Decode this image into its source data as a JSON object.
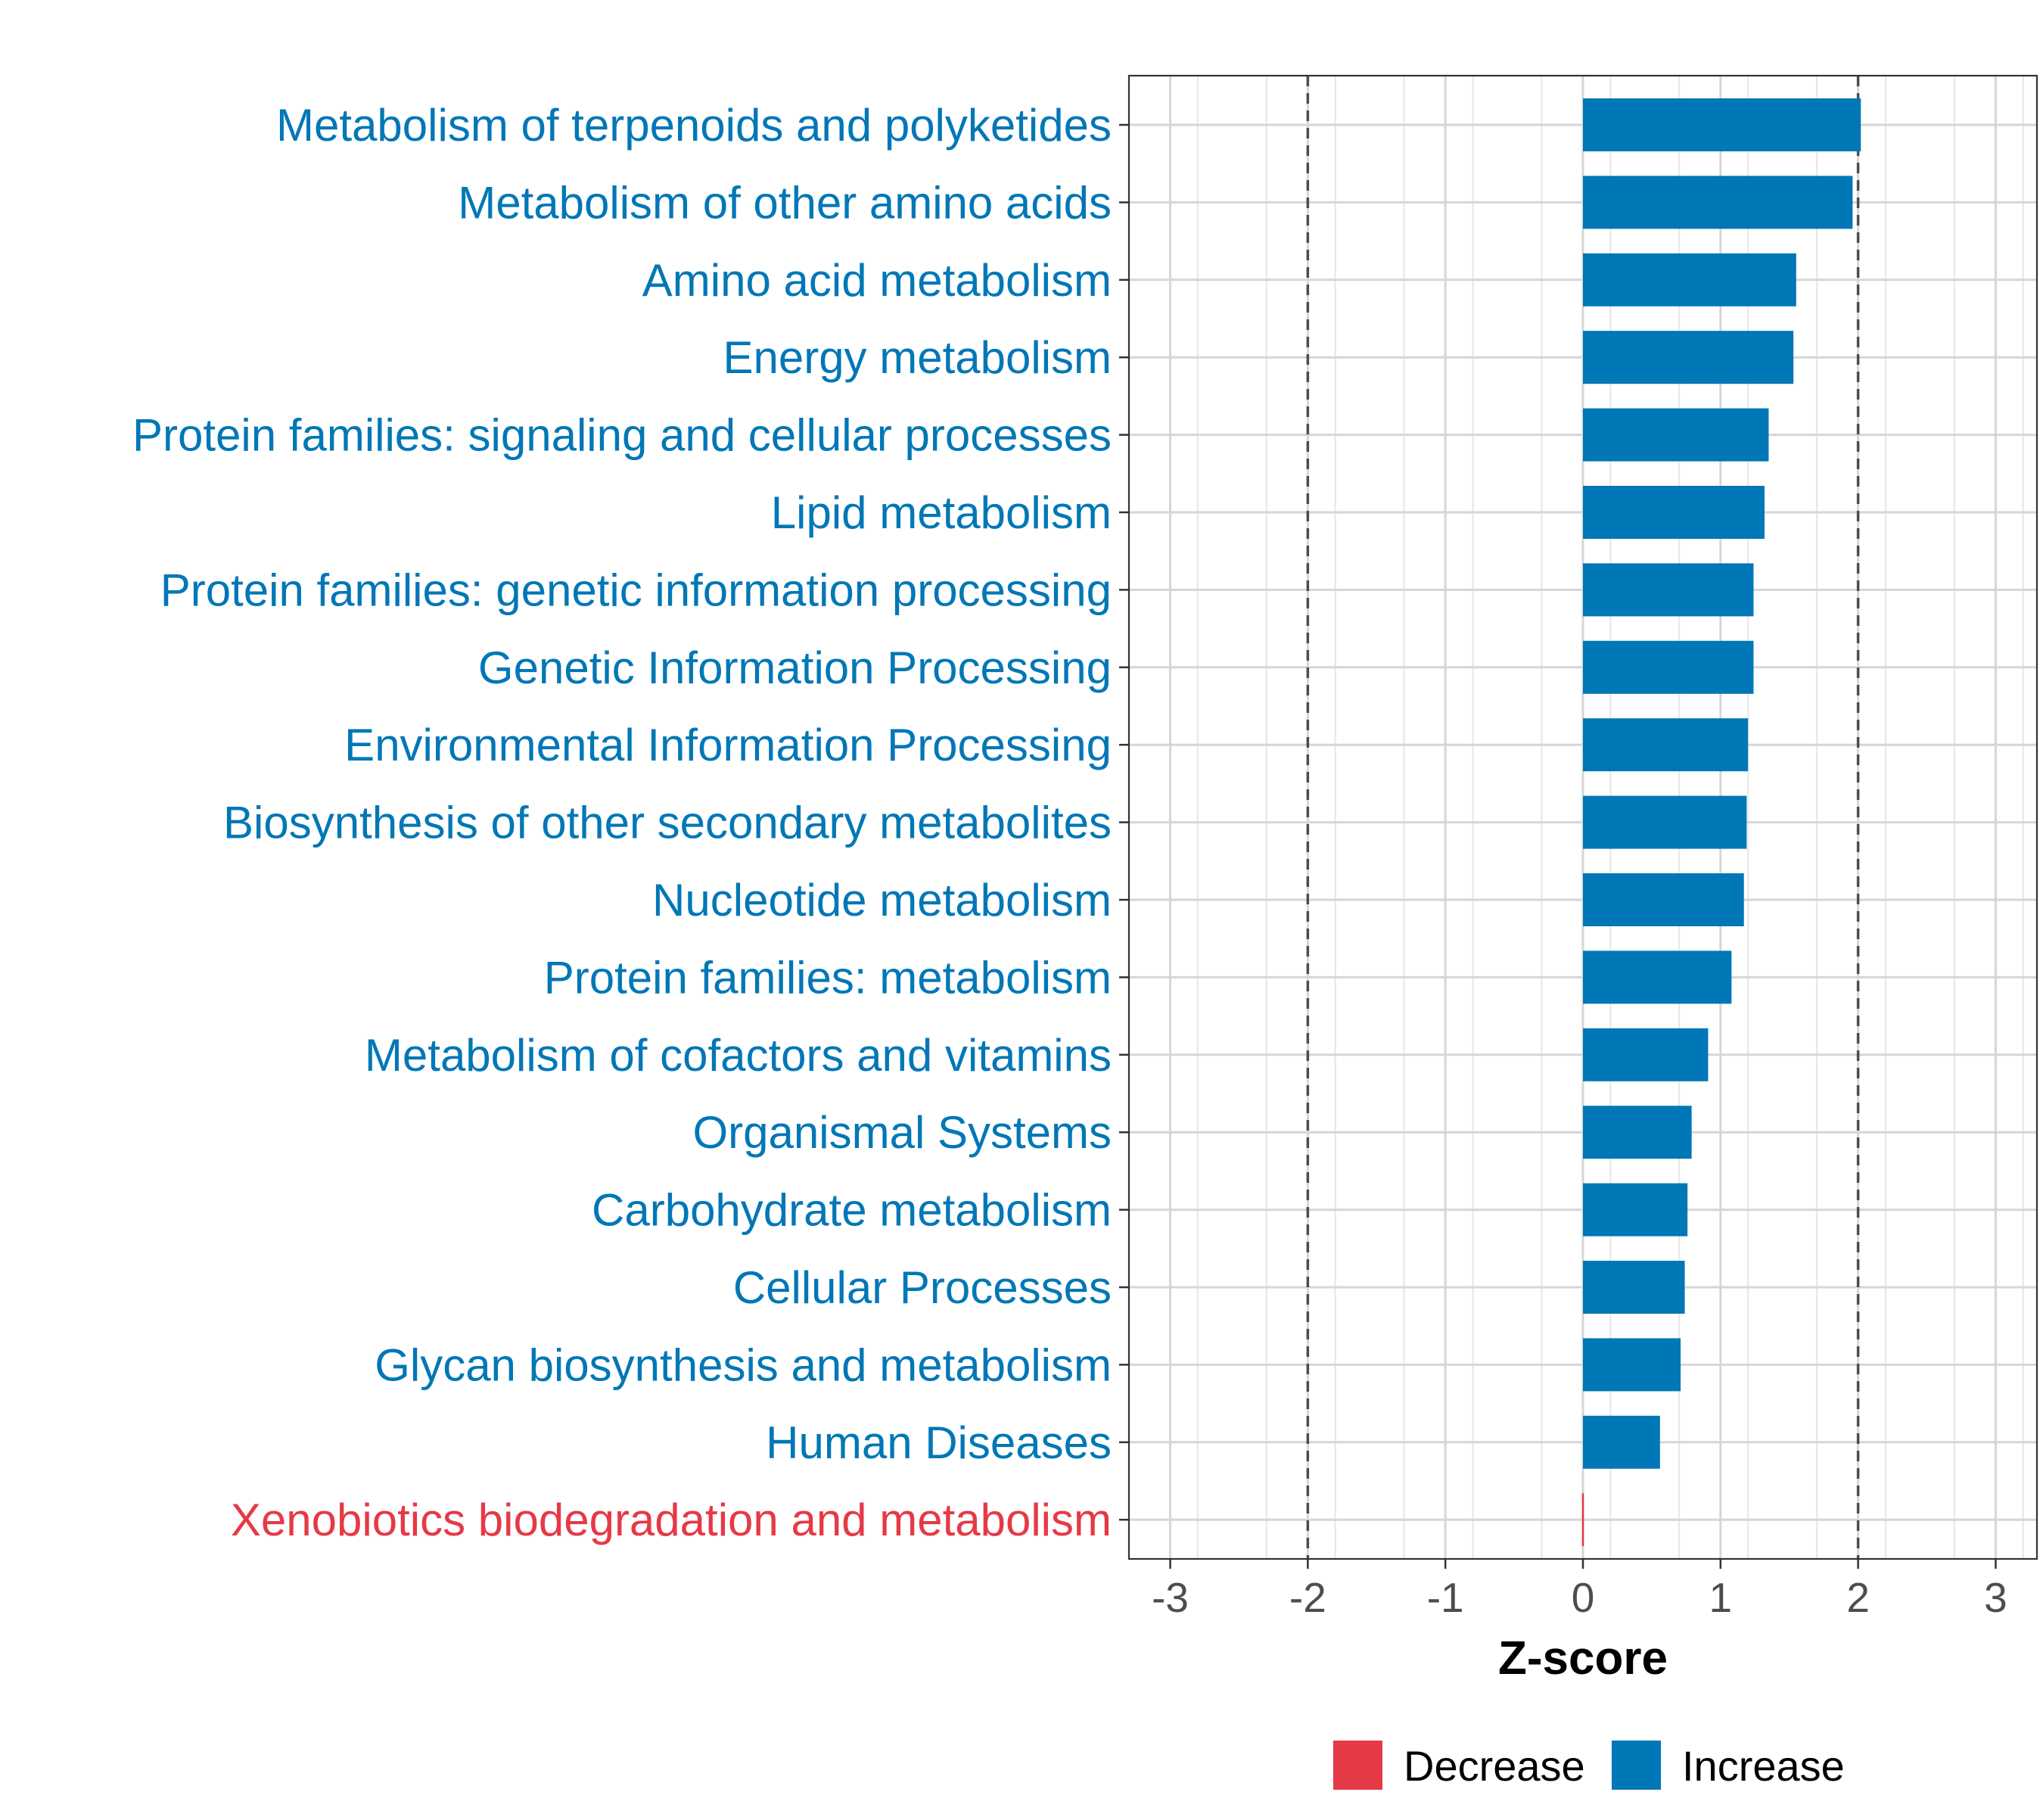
{
  "chart_data": {
    "type": "bar",
    "orientation": "horizontal",
    "xlabel": "Z-score",
    "ylabel": "",
    "xlim": [
      -3.3,
      3.3
    ],
    "x_ticks": [
      -3,
      -2,
      -1,
      0,
      1,
      2,
      3
    ],
    "x_tick_labels": [
      "-3",
      "-2",
      "-1",
      "0",
      "1",
      "2",
      "3"
    ],
    "reference_lines": [
      -2,
      2
    ],
    "grid": true,
    "legend_position": "bottom",
    "colors": {
      "Decrease": "#E63946",
      "Increase": "#0077B6"
    },
    "legend": [
      "Decrease",
      "Increase"
    ],
    "categories": [
      "Metabolism of terpenoids and polyketides",
      "Metabolism of other amino acids",
      "Amino acid metabolism",
      "Energy metabolism",
      "Protein families: signaling and cellular processes",
      "Lipid metabolism",
      "Protein families: genetic information processing",
      "Genetic Information Processing",
      "Environmental Information Processing",
      "Biosynthesis of other secondary metabolites",
      "Nucleotide metabolism",
      "Protein families: metabolism",
      "Metabolism of cofactors and vitamins",
      "Organismal Systems",
      "Carbohydrate metabolism",
      "Cellular Processes",
      "Glycan biosynthesis and metabolism",
      "Human Diseases",
      "Xenobiotics biodegradation and metabolism"
    ],
    "values": [
      2.02,
      1.96,
      1.55,
      1.53,
      1.35,
      1.32,
      1.24,
      1.24,
      1.2,
      1.19,
      1.17,
      1.08,
      0.91,
      0.79,
      0.76,
      0.74,
      0.71,
      0.56,
      -0.01
    ],
    "groups": [
      "Increase",
      "Increase",
      "Increase",
      "Increase",
      "Increase",
      "Increase",
      "Increase",
      "Increase",
      "Increase",
      "Increase",
      "Increase",
      "Increase",
      "Increase",
      "Increase",
      "Increase",
      "Increase",
      "Increase",
      "Increase",
      "Decrease"
    ]
  }
}
